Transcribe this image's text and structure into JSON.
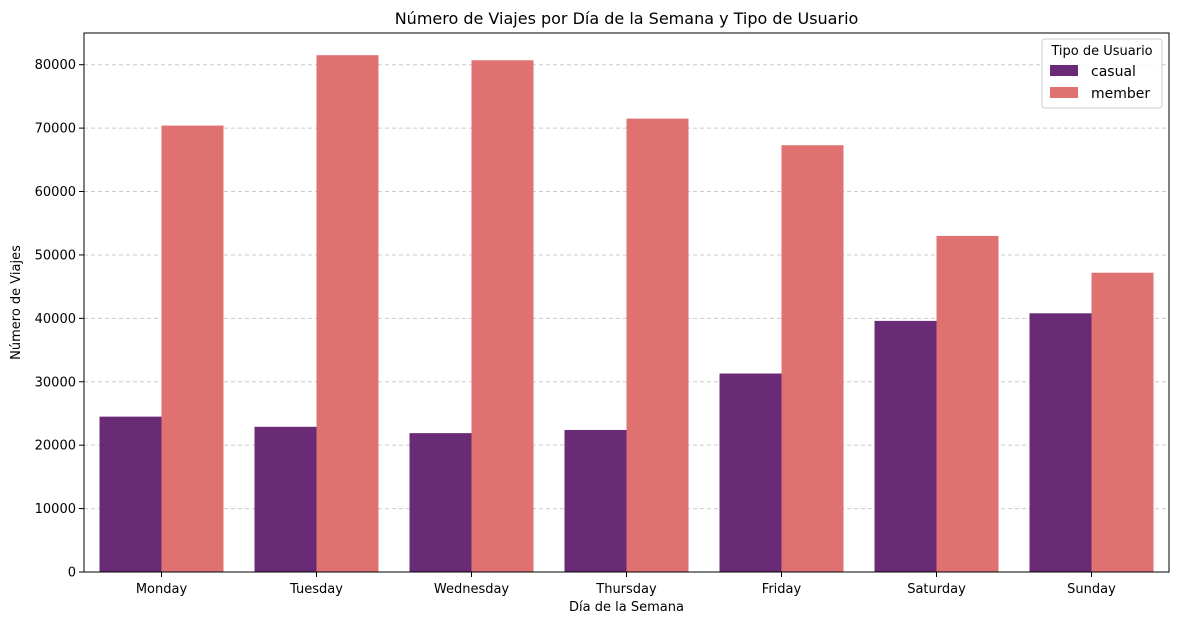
{
  "chart_data": {
    "type": "bar",
    "title": "Número de Viajes por Día de la Semana y Tipo de Usuario",
    "xlabel": "Día de la Semana",
    "ylabel": "Número de Viajes",
    "categories": [
      "Monday",
      "Tuesday",
      "Wednesday",
      "Thursday",
      "Friday",
      "Saturday",
      "Sunday"
    ],
    "series": [
      {
        "name": "casual",
        "color": "#692b75",
        "values": [
          24500,
          22900,
          21900,
          22400,
          31300,
          39600,
          40800
        ]
      },
      {
        "name": "member",
        "color": "#df7170",
        "values": [
          70400,
          81500,
          80700,
          71500,
          67300,
          53000,
          47200
        ]
      }
    ],
    "ylim": [
      0,
      85000
    ],
    "yticks": [
      0,
      10000,
      20000,
      30000,
      40000,
      50000,
      60000,
      70000,
      80000
    ],
    "grid": "y-dashed",
    "legend": {
      "title": "Tipo de Usuario",
      "placement": "top-right"
    }
  }
}
